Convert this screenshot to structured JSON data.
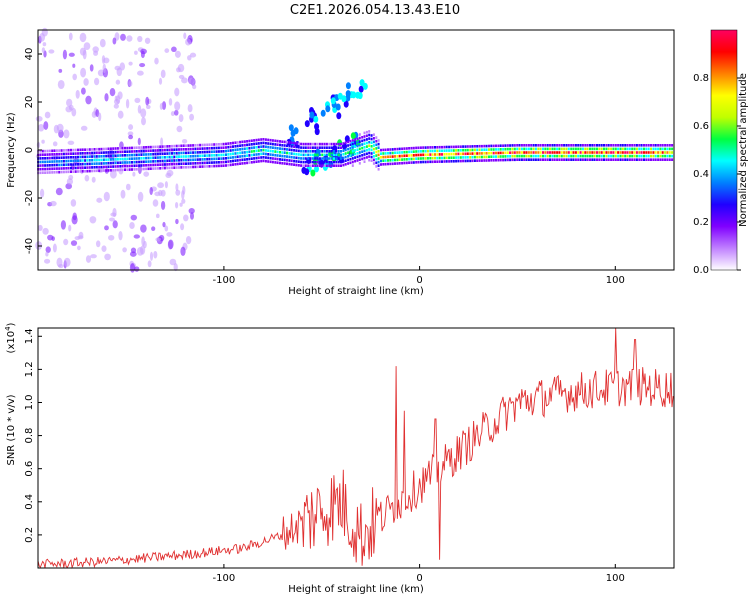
{
  "title": "C2E1.2026.054.13.43.E10",
  "chart_data": [
    {
      "type": "heatmap",
      "name": "spectrogram",
      "xlabel": "Height of straight line (km)",
      "ylabel": "Frequency (Hz)",
      "xlim": [
        -195,
        130
      ],
      "ylim": [
        -50,
        50
      ],
      "xticks": [
        -100,
        0,
        100
      ],
      "yticks": [
        -40,
        -20,
        0,
        20,
        40
      ],
      "colorbar": {
        "label": "Normalized spectral amplitude",
        "range": [
          0,
          1
        ],
        "ticks": [
          "0.0",
          "0.2",
          "0.4",
          "0.6",
          "0.8"
        ],
        "colors": [
          "#ffffff",
          "#c080ff",
          "#8000ff",
          "#2000ff",
          "#0080ff",
          "#00ffff",
          "#00ff40",
          "#c0ff00",
          "#ffff00",
          "#ff8000",
          "#ff0000",
          "#ff0060"
        ]
      },
      "ridge": [
        {
          "x": -195,
          "f": -5,
          "amp": 0.35
        },
        {
          "x": -160,
          "f": -4,
          "amp": 0.45
        },
        {
          "x": -130,
          "f": -3,
          "amp": 0.4
        },
        {
          "x": -100,
          "f": -2,
          "amp": 0.45
        },
        {
          "x": -80,
          "f": 0,
          "amp": 0.5
        },
        {
          "x": -60,
          "f": -2,
          "amp": 0.45
        },
        {
          "x": -40,
          "f": -2,
          "amp": 0.5
        },
        {
          "x": -25,
          "f": 2,
          "amp": 0.6
        },
        {
          "x": -20,
          "f": -3,
          "amp": 0.85
        },
        {
          "x": 0,
          "f": -2,
          "amp": 0.9
        },
        {
          "x": 50,
          "f": -1,
          "amp": 0.95
        },
        {
          "x": 100,
          "f": -1,
          "amp": 0.95
        },
        {
          "x": 130,
          "f": -1,
          "amp": 0.85
        }
      ],
      "branches": [
        {
          "from": [
            -70,
            3
          ],
          "to": [
            -30,
            25
          ],
          "amp": 0.4
        },
        {
          "from": [
            -60,
            -8
          ],
          "to": [
            -30,
            3
          ],
          "amp": 0.45
        }
      ]
    },
    {
      "type": "line",
      "name": "snr",
      "xlabel": "Height of straight line (km)",
      "ylabel": "SNR (10 * v/v)",
      "multiplier": "(x10",
      "multiplier_exp": "4",
      "multiplier_close": ")",
      "xlim": [
        -195,
        130
      ],
      "ylim": [
        0,
        1.45
      ],
      "xticks": [
        -100,
        0,
        100
      ],
      "yticks": [
        "0.2",
        "0.4",
        "0.6",
        "0.8",
        "1.0",
        "1.2",
        "1.4"
      ],
      "color": "#e03030",
      "trend": [
        {
          "x": -195,
          "y": 0.02
        },
        {
          "x": -160,
          "y": 0.04
        },
        {
          "x": -120,
          "y": 0.08
        },
        {
          "x": -90,
          "y": 0.12
        },
        {
          "x": -70,
          "y": 0.2
        },
        {
          "x": -50,
          "y": 0.35
        },
        {
          "x": -40,
          "y": 0.4
        },
        {
          "x": -30,
          "y": 0.2
        },
        {
          "x": -20,
          "y": 0.3
        },
        {
          "x": -5,
          "y": 0.45
        },
        {
          "x": 10,
          "y": 0.6
        },
        {
          "x": 30,
          "y": 0.8
        },
        {
          "x": 50,
          "y": 1.0
        },
        {
          "x": 70,
          "y": 1.05
        },
        {
          "x": 90,
          "y": 1.08
        },
        {
          "x": 110,
          "y": 1.1
        },
        {
          "x": 130,
          "y": 1.08
        }
      ],
      "spikes": [
        {
          "x": -12,
          "y": 1.22
        },
        {
          "x": -8,
          "y": 0.95
        },
        {
          "x": 8,
          "y": 0.9
        },
        {
          "x": 10,
          "y": 0.05
        },
        {
          "x": 100,
          "y": 1.45
        },
        {
          "x": 110,
          "y": 1.38
        }
      ]
    }
  ]
}
